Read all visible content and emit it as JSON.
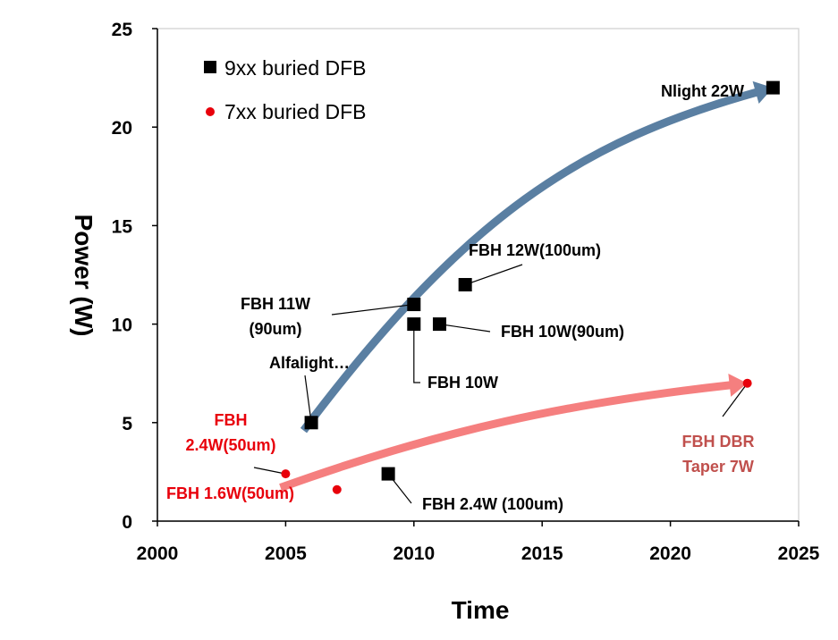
{
  "chart_data": {
    "type": "scatter",
    "xlabel": "Time",
    "ylabel": "Power (W)",
    "xlim": [
      2000,
      2025
    ],
    "ylim": [
      0,
      25
    ],
    "xticks": [
      "2000",
      "2005",
      "2010",
      "2015",
      "2020",
      "2025"
    ],
    "yticks": [
      "0",
      "5",
      "10",
      "15",
      "20",
      "25"
    ],
    "grid": false,
    "legend_position": "top-left",
    "series": [
      {
        "name": "9xx buried DFB",
        "marker": "square",
        "color": "#000000",
        "points": [
          {
            "x": 2006,
            "y": 5
          },
          {
            "x": 2009,
            "y": 2.4
          },
          {
            "x": 2010,
            "y": 11
          },
          {
            "x": 2010,
            "y": 10
          },
          {
            "x": 2011,
            "y": 10
          },
          {
            "x": 2012,
            "y": 12
          },
          {
            "x": 2024,
            "y": 22
          }
        ]
      },
      {
        "name": "7xx buried DFB",
        "marker": "circle",
        "color": "#e8000b",
        "points": [
          {
            "x": 2005,
            "y": 2.4
          },
          {
            "x": 2007,
            "y": 1.6
          },
          {
            "x": 2023,
            "y": 7
          }
        ]
      }
    ],
    "annotations": [
      {
        "lines": [
          "Nlight 22W"
        ],
        "color": "#000000"
      },
      {
        "lines": [
          "FBH 12W(100um)"
        ],
        "color": "#000000"
      },
      {
        "lines": [
          "FBH 11W",
          "(90um)"
        ],
        "color": "#000000"
      },
      {
        "lines": [
          "FBH 10W(90um)"
        ],
        "color": "#000000"
      },
      {
        "lines": [
          "Alfalight…"
        ],
        "color": "#000000"
      },
      {
        "lines": [
          "FBH 10W"
        ],
        "color": "#000000"
      },
      {
        "lines": [
          "FBH",
          "2.4W(50um)"
        ],
        "color": "#e8000b"
      },
      {
        "lines": [
          "FBH 1.6W(50um)"
        ],
        "color": "#e8000b"
      },
      {
        "lines": [
          "FBH 2.4W (100um)"
        ],
        "color": "#000000"
      },
      {
        "lines": [
          "FBH DBR",
          "Taper 7W"
        ],
        "color": "#c0504d"
      }
    ],
    "trend_arrows": [
      {
        "series": "9xx buried DFB",
        "color": "#5a7fa2",
        "from": {
          "x": 2005.7,
          "y": 4.6
        },
        "to": {
          "x": 2024,
          "y": 22
        }
      },
      {
        "series": "7xx buried DFB",
        "color": "#f57f7f",
        "from": {
          "x": 2004.8,
          "y": 1.7
        },
        "to": {
          "x": 2023,
          "y": 7
        }
      }
    ]
  }
}
